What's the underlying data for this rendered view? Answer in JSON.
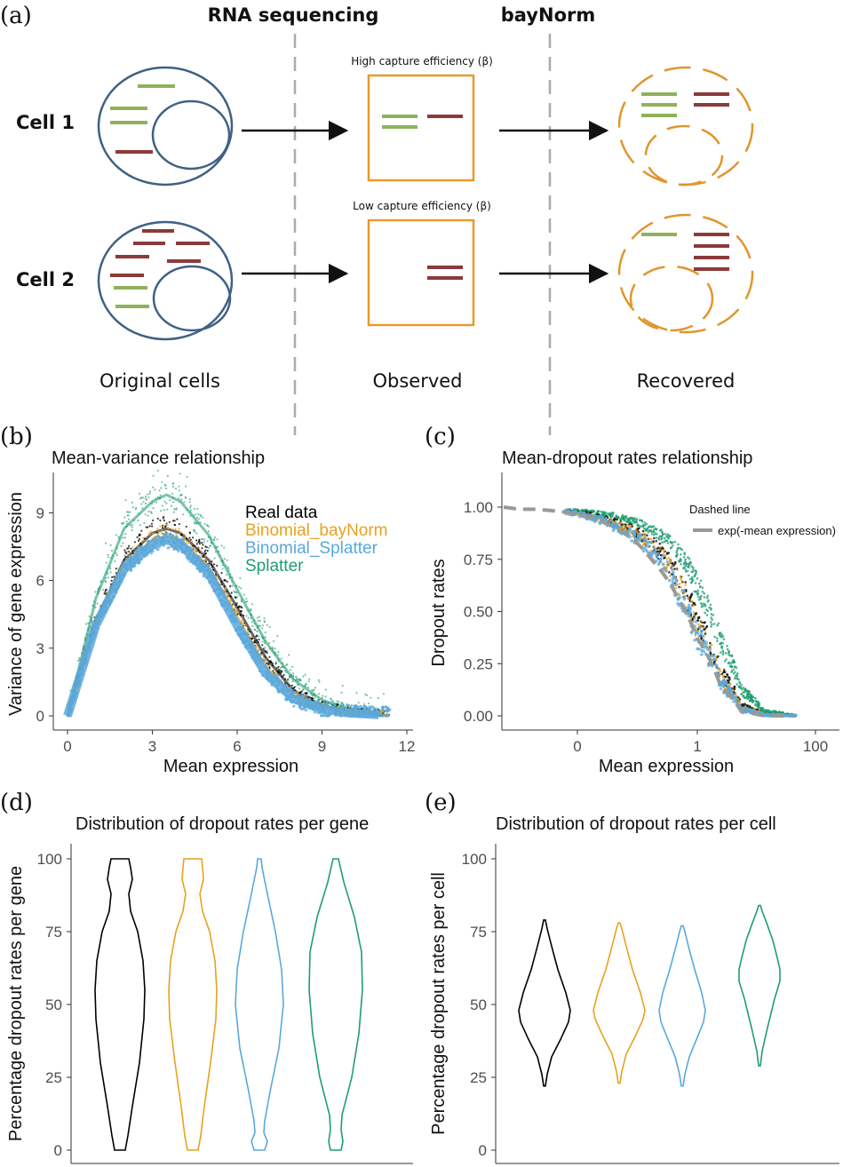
{
  "panel_a": {
    "label": "(a)",
    "stage_rna": "RNA sequencing",
    "stage_baynorm": "bayNorm",
    "cell1_label": "Cell 1",
    "cell2_label": "Cell 2",
    "high_eff_label": "High capture efficiency (β)",
    "low_eff_label": "Low capture efficiency (β)",
    "caption_original": "Original cells",
    "caption_observed": "Observed",
    "caption_recovered": "Recovered",
    "colors": {
      "cell_outline": "#3f6184",
      "observed_box": "#e89a2c",
      "recovered_dash": "#e0962e",
      "green_mrna": "#8fb15b",
      "red_mrna": "#8b3a3a",
      "divider": "#aaaaaa"
    }
  },
  "panel_labels": {
    "b": "(b)",
    "c": "(c)",
    "d": "(d)",
    "e": "(e)"
  },
  "series_colors": {
    "Real data": "#000000",
    "Binomial_bayNorm": "#e6a21f",
    "Binomial_Splatter": "#5aa8dc",
    "Splatter": "#1f9d70"
  },
  "chart_data": [
    {
      "id": "b",
      "type": "scatter",
      "title": "Mean-variance relationship",
      "xlabel": "Mean expression",
      "ylabel": "Variance of gene expression",
      "xlim": [
        0,
        12
      ],
      "ylim": [
        0,
        10
      ],
      "xticks": [
        "0",
        "3",
        "6",
        "9",
        "12"
      ],
      "yticks": [
        "0",
        "3",
        "6",
        "9"
      ],
      "legend_position": "top-right",
      "series": [
        {
          "name": "Real data",
          "x": [
            0,
            1,
            2,
            3,
            3.5,
            4,
            5,
            6,
            7,
            8,
            9,
            10,
            11
          ],
          "y": [
            0,
            4.2,
            6.9,
            8.1,
            8.3,
            8.1,
            6.9,
            4.8,
            2.6,
            1.1,
            0.45,
            0.2,
            0.1
          ]
        },
        {
          "name": "Binomial_bayNorm",
          "x": [
            0,
            1,
            2,
            3,
            3.5,
            4,
            5,
            6,
            7,
            8,
            9,
            10,
            11
          ],
          "y": [
            0,
            4.1,
            6.7,
            7.8,
            8.0,
            7.8,
            6.6,
            4.4,
            2.2,
            0.9,
            0.35,
            0.15,
            0.1
          ]
        },
        {
          "name": "Binomial_Splatter",
          "x": [
            0,
            1,
            2,
            3,
            3.5,
            4,
            5,
            6,
            7,
            8,
            9,
            10,
            11
          ],
          "y": [
            0,
            4.0,
            6.5,
            7.6,
            7.8,
            7.6,
            6.3,
            4.0,
            1.9,
            0.75,
            0.3,
            0.12,
            0.05
          ]
        },
        {
          "name": "Splatter",
          "x": [
            0,
            1,
            2,
            3,
            3.5,
            4,
            5,
            6,
            7,
            8,
            9,
            10,
            11
          ],
          "y": [
            0,
            5.2,
            8.3,
            9.5,
            9.8,
            9.5,
            8.0,
            5.6,
            3.3,
            1.6,
            0.7,
            0.3,
            0.15
          ]
        }
      ]
    },
    {
      "id": "c",
      "type": "scatter",
      "title": "Mean-dropout rates relationship",
      "xlabel": "Mean expression",
      "ylabel": "Dropout rates",
      "xscale": "log10(x+1)",
      "xticks": [
        "0",
        "1",
        "100"
      ],
      "yticks": [
        "0.00",
        "0.25",
        "0.50",
        "0.75",
        "1.00"
      ],
      "ylim": [
        0,
        1
      ],
      "legend_title": "Dashed line",
      "legend_entry": "exp(-mean expression)",
      "legend_position": "top-right",
      "series": [
        {
          "name": "Real data",
          "x": [
            0.01,
            0.1,
            0.3,
            0.6,
            1,
            2,
            4,
            10,
            30
          ],
          "y": [
            0.99,
            0.93,
            0.82,
            0.65,
            0.45,
            0.2,
            0.05,
            0.005,
            0
          ]
        },
        {
          "name": "Binomial_bayNorm",
          "x": [
            0.01,
            0.1,
            0.3,
            0.6,
            1,
            2,
            4,
            10,
            30
          ],
          "y": [
            0.99,
            0.92,
            0.8,
            0.62,
            0.42,
            0.17,
            0.04,
            0.004,
            0
          ]
        },
        {
          "name": "Binomial_Splatter",
          "x": [
            0.01,
            0.1,
            0.3,
            0.6,
            1,
            2,
            4,
            10,
            30
          ],
          "y": [
            0.99,
            0.91,
            0.78,
            0.58,
            0.38,
            0.15,
            0.03,
            0.003,
            0
          ]
        },
        {
          "name": "Splatter",
          "x": [
            0.01,
            0.1,
            0.3,
            0.6,
            1,
            2,
            4,
            10,
            30
          ],
          "y": [
            0.99,
            0.96,
            0.89,
            0.78,
            0.62,
            0.34,
            0.12,
            0.02,
            0
          ]
        },
        {
          "name": "exp(-mean expression)",
          "x": [
            0.01,
            0.1,
            0.3,
            0.6,
            1,
            2,
            4,
            10,
            30
          ],
          "y": [
            0.99,
            0.905,
            0.74,
            0.55,
            0.37,
            0.135,
            0.018,
            0,
            0
          ]
        }
      ]
    },
    {
      "id": "d",
      "type": "violin",
      "title": "Distribution of dropout rates per gene",
      "ylabel": "Percentage dropout rates per gene",
      "ylim": [
        0,
        100
      ],
      "yticks": [
        "0",
        "25",
        "50",
        "75",
        "100"
      ],
      "series": [
        {
          "name": "Real data",
          "min": 0,
          "max": 100,
          "median_approx": 55
        },
        {
          "name": "Binomial_bayNorm",
          "min": 0,
          "max": 100,
          "median_approx": 55
        },
        {
          "name": "Binomial_Splatter",
          "min": 0,
          "max": 100,
          "median_approx": 55
        },
        {
          "name": "Splatter",
          "min": 0,
          "max": 100,
          "median_approx": 65
        }
      ]
    },
    {
      "id": "e",
      "type": "violin",
      "title": "Distribution of dropout rates per cell",
      "ylabel": "Percentage dropout rates per cell",
      "ylim": [
        0,
        100
      ],
      "yticks": [
        "0",
        "25",
        "50",
        "75",
        "100"
      ],
      "series": [
        {
          "name": "Real data",
          "min": 22,
          "max": 79,
          "median_approx": 48
        },
        {
          "name": "Binomial_bayNorm",
          "min": 23,
          "max": 78,
          "median_approx": 48
        },
        {
          "name": "Binomial_Splatter",
          "min": 22,
          "max": 77,
          "median_approx": 47
        },
        {
          "name": "Splatter",
          "min": 29,
          "max": 84,
          "median_approx": 60
        }
      ]
    }
  ]
}
